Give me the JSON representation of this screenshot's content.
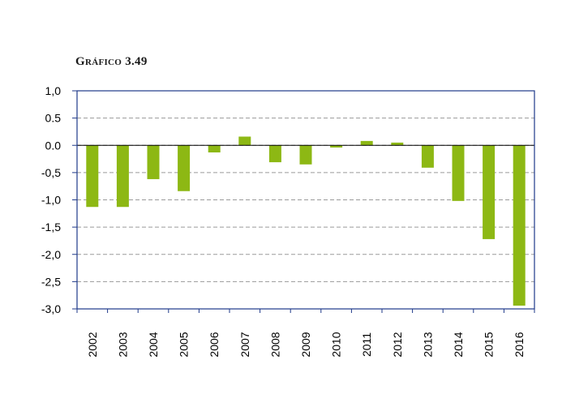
{
  "title": "Gráfico 3.49",
  "chart_data": {
    "type": "bar",
    "categories": [
      "2002",
      "2003",
      "2004",
      "2005",
      "2006",
      "2007",
      "2008",
      "2009",
      "2010",
      "2011",
      "2012",
      "2013",
      "2014",
      "2015",
      "2016"
    ],
    "values": [
      -1.13,
      -1.13,
      -0.62,
      -0.84,
      -0.13,
      0.16,
      -0.31,
      -0.35,
      -0.04,
      0.08,
      0.05,
      -0.41,
      -1.02,
      -1.72,
      -2.94
    ],
    "ylim": [
      -3.0,
      1.0
    ],
    "yticks": [
      1.0,
      0.5,
      0.0,
      -0.5,
      -1.0,
      -1.5,
      -2.0,
      -2.5,
      -3.0
    ],
    "ytick_labels": [
      "1,0",
      "0.5",
      "0.0",
      "-0,5",
      "-1,0",
      "-1,5",
      "-2,0",
      "-2,5",
      "-3,0"
    ],
    "grid": "horizontal dashed",
    "legend": "none",
    "bar_color": "#8db814",
    "grid_color": "#9a9a9a",
    "axis_color": "#1f3a8a"
  }
}
